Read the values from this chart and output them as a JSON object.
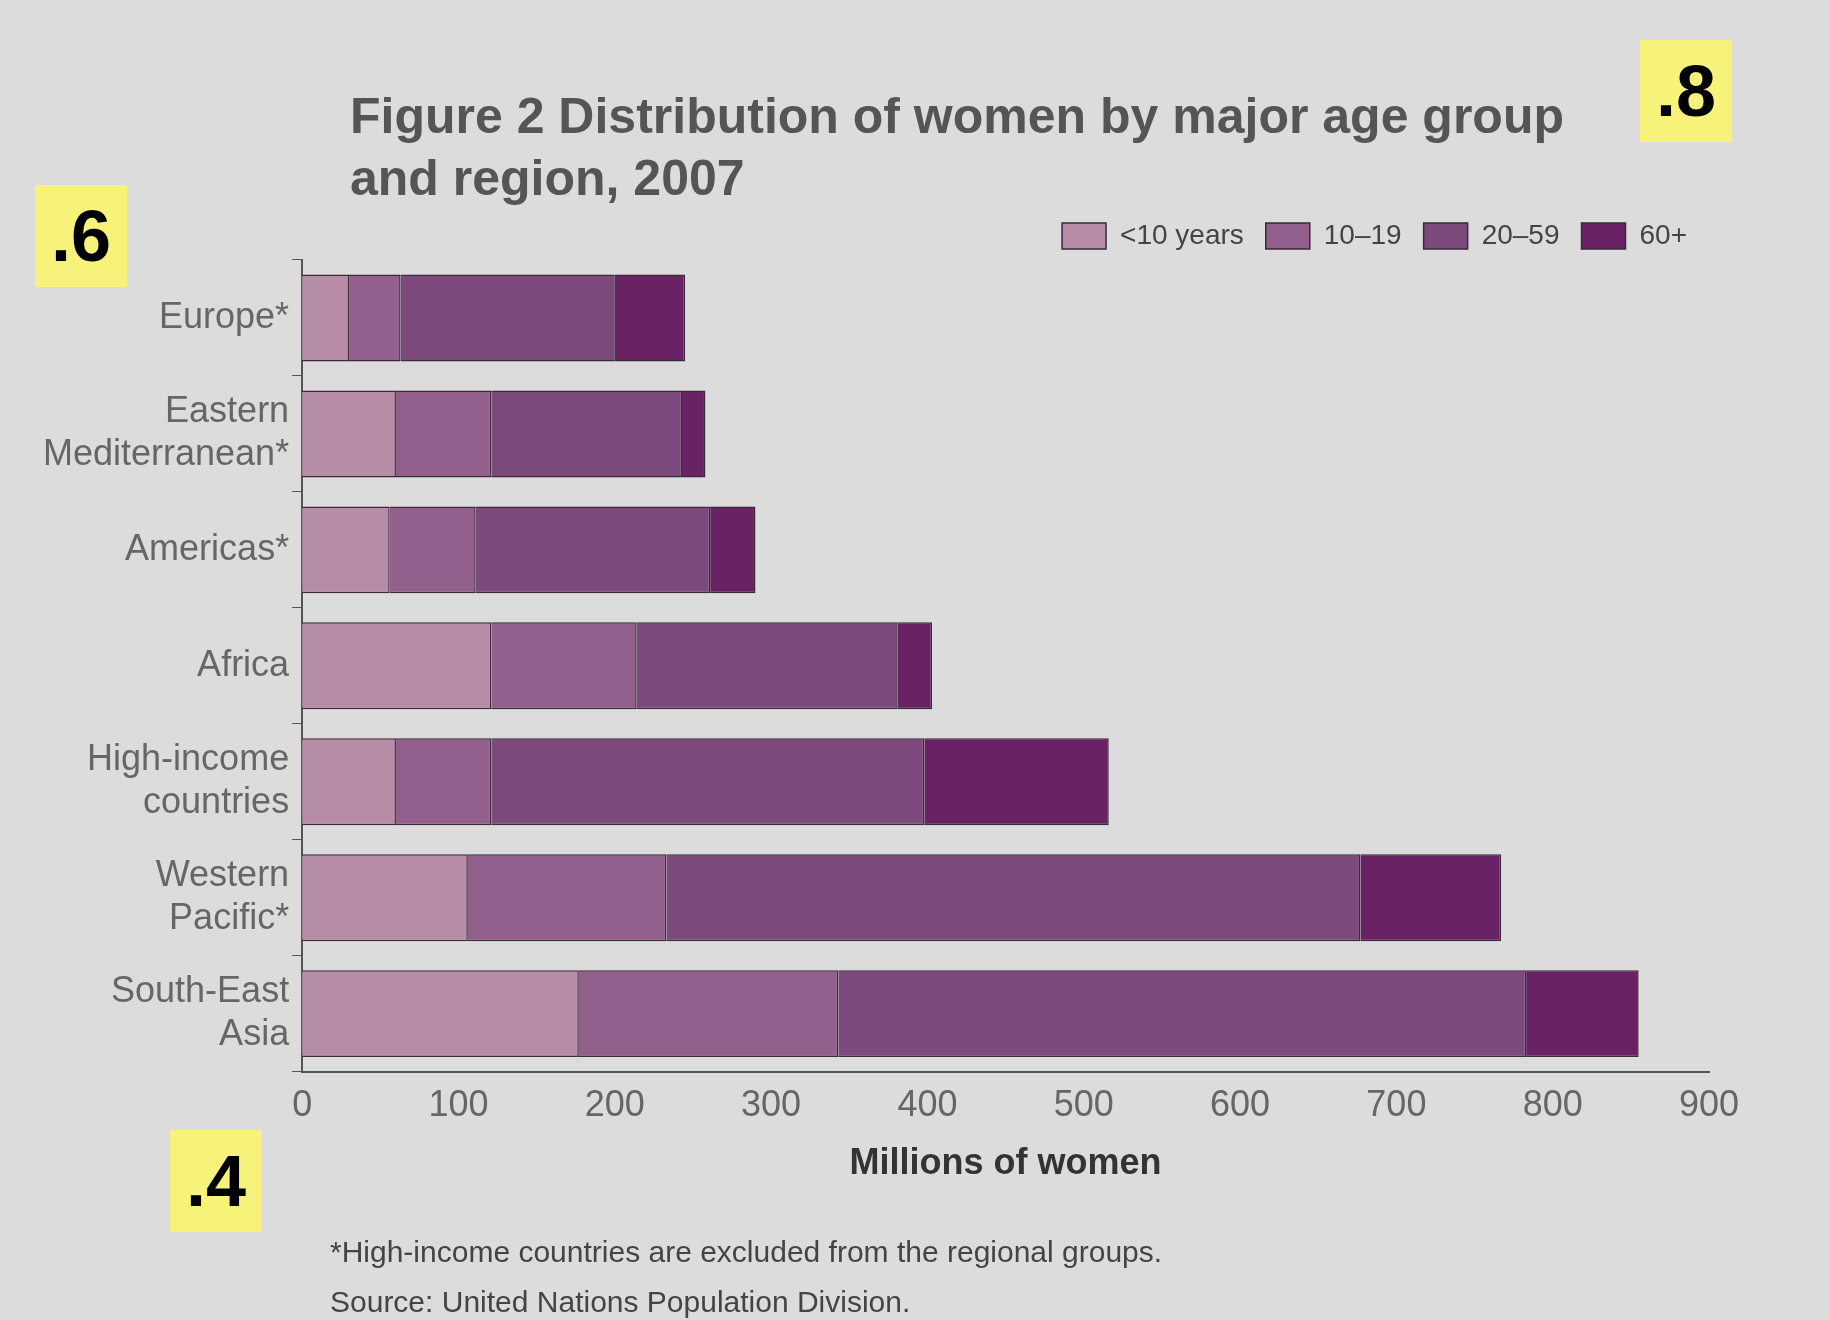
{
  "chart_data": {
    "type": "bar",
    "orientation": "horizontal",
    "stacked": true,
    "title": "Figure 2  Distribution of women by major age group and region, 2007",
    "xlabel": "Millions of women",
    "categories": [
      "Europe*",
      "Eastern Mediterranean*",
      "Americas*",
      "Africa",
      "High-income countries",
      "Western Pacific*",
      "South-East Asia"
    ],
    "series": [
      {
        "name": "<10 years",
        "color": "#b68ca6",
        "values": [
          30,
          60,
          56,
          121,
          60,
          106,
          177
        ]
      },
      {
        "name": "10–19",
        "color": "#935f8c",
        "values": [
          33,
          61,
          55,
          93,
          61,
          127,
          166
        ]
      },
      {
        "name": "20–59",
        "color": "#7c4a7c",
        "values": [
          137,
          122,
          150,
          167,
          277,
          444,
          440
        ]
      },
      {
        "name": "60+",
        "color": "#692264",
        "values": [
          45,
          15,
          29,
          22,
          118,
          90,
          72
        ]
      }
    ],
    "xlim": [
      0,
      900
    ],
    "xticks": [
      0,
      100,
      200,
      300,
      400,
      500,
      600,
      700,
      800,
      900
    ],
    "grid": false,
    "legend": "top right",
    "annotations": [
      "*High-income countries are excluded from the regional groups.",
      "Source: United Nations Population Division.",
      ".6",
      ".8",
      ".4"
    ]
  }
}
